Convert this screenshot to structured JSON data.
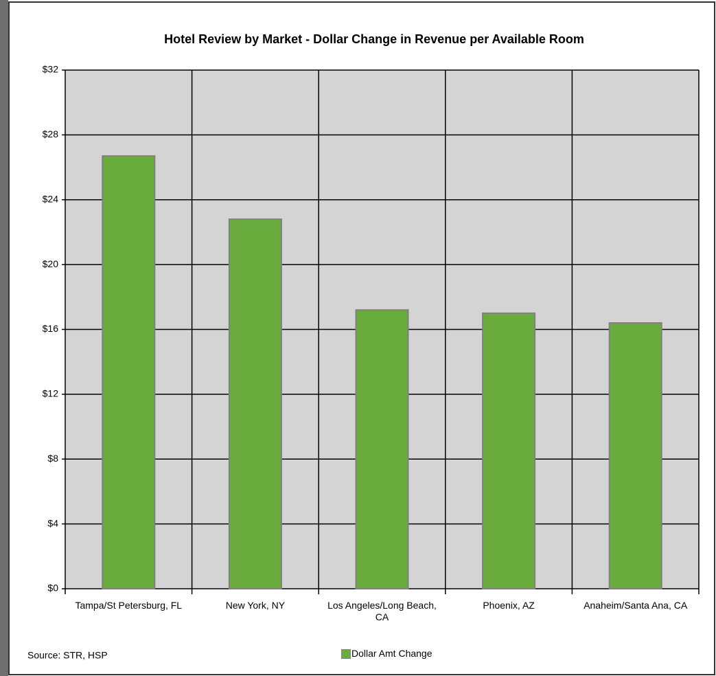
{
  "chart_data": {
    "type": "bar",
    "title": "Hotel Review by Market - Dollar Change in Revenue per Available Room",
    "categories": [
      "Tampa/St Petersburg, FL",
      "New York, NY",
      "Los Angeles/Long Beach, CA",
      "Phoenix, AZ",
      "Anaheim/Santa Ana, CA"
    ],
    "series": [
      {
        "name": "Dollar Amt Change",
        "color": "#6aab3e",
        "values": [
          26.7,
          22.8,
          17.2,
          17.0,
          16.4
        ]
      }
    ],
    "ylim": [
      0,
      32
    ],
    "yticks": [
      {
        "value": 0,
        "label": "$0"
      },
      {
        "value": 4,
        "label": "$4"
      },
      {
        "value": 8,
        "label": "$8"
      },
      {
        "value": 12,
        "label": "$12"
      },
      {
        "value": 16,
        "label": "$16"
      },
      {
        "value": 20,
        "label": "$20"
      },
      {
        "value": 24,
        "label": "$24"
      },
      {
        "value": 28,
        "label": "$28"
      },
      {
        "value": 32,
        "label": "$32"
      }
    ],
    "grid": true,
    "source": "Source: STR, HSP"
  }
}
